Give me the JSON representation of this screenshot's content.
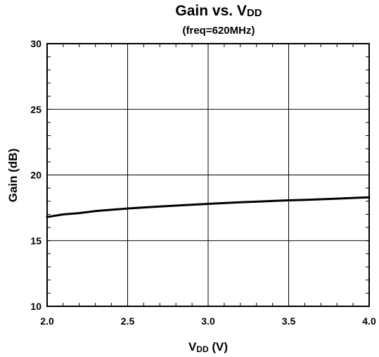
{
  "chart_data": {
    "type": "line",
    "title": "Gain vs. V",
    "title_subscript": "DD",
    "subtitle": "(freq=620MHz)",
    "xlabel": "V",
    "xlabel_subscript": "DD",
    "xlabel_unit": " (V)",
    "ylabel": "Gain (dB)",
    "xlim": [
      2.0,
      4.0
    ],
    "ylim": [
      10,
      30
    ],
    "x_ticks": [
      "2.0",
      "2.5",
      "3.0",
      "3.5",
      "4.0"
    ],
    "y_ticks": [
      "10",
      "15",
      "20",
      "25",
      "30"
    ],
    "grid": true,
    "legend": "none",
    "line_color": "#000000",
    "series": [
      {
        "x": [
          2.0,
          2.1,
          2.2,
          2.3,
          2.4,
          2.5,
          2.6,
          2.7,
          2.8,
          2.9,
          3.0,
          3.1,
          3.2,
          3.3,
          3.4,
          3.5,
          3.6,
          3.7,
          3.8,
          3.9,
          4.0
        ],
        "values": [
          16.8,
          17.0,
          17.1,
          17.25,
          17.35,
          17.45,
          17.53,
          17.6,
          17.67,
          17.73,
          17.8,
          17.86,
          17.92,
          17.97,
          18.02,
          18.07,
          18.1,
          18.15,
          18.2,
          18.25,
          18.3
        ]
      }
    ]
  }
}
